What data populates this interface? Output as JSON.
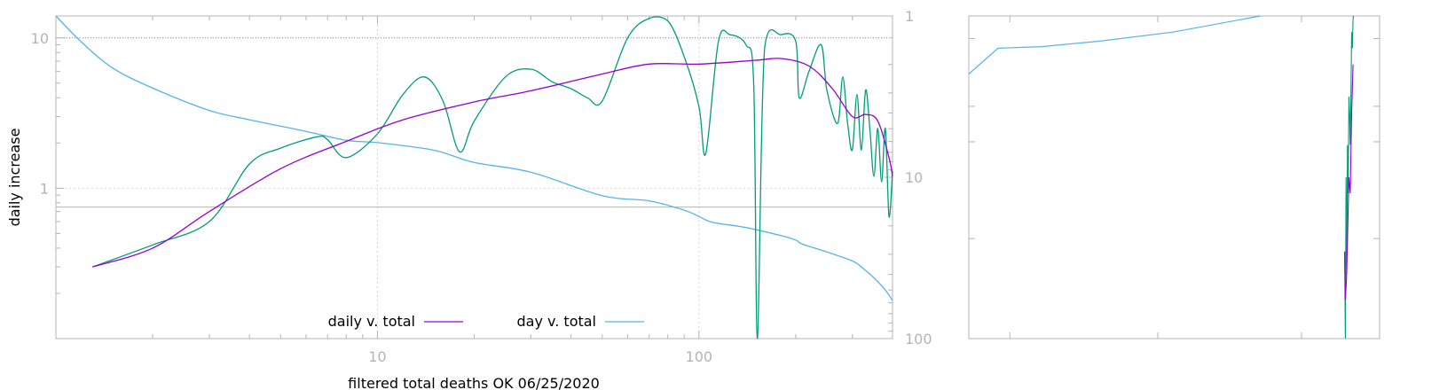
{
  "chart_data": [
    {
      "type": "line",
      "title": "",
      "xlabel": "filtered total deaths OK 06/25/2020",
      "ylabel": "daily increase",
      "x_scale": "log",
      "y_scale": "log",
      "y2_scale": "log",
      "y2_reversed": true,
      "xlim": [
        1.0,
        400
      ],
      "ylim": [
        0.1,
        14
      ],
      "y2lim": [
        1,
        100
      ],
      "x_ticks": [
        10,
        100
      ],
      "y_ticks": [
        1,
        10
      ],
      "y2_ticks": [
        1,
        10,
        100
      ],
      "grid": true,
      "legend_position": "bottom-center",
      "reference_lines": [
        {
          "axis": "y",
          "value": 10,
          "style": "dotted"
        },
        {
          "axis": "y",
          "value": 0.75,
          "style": "solid"
        }
      ],
      "series": [
        {
          "name": "daily v. total",
          "color": "#9400d3",
          "axis": "y",
          "points": [
            [
              1.3,
              0.3
            ],
            [
              2,
              0.4
            ],
            [
              3,
              0.7
            ],
            [
              5,
              1.35
            ],
            [
              8,
              2.05
            ],
            [
              12,
              2.85
            ],
            [
              20,
              3.75
            ],
            [
              30,
              4.45
            ],
            [
              50,
              5.75
            ],
            [
              70,
              6.7
            ],
            [
              100,
              6.7
            ],
            [
              150,
              7.1
            ],
            [
              180,
              7.3
            ],
            [
              220,
              6.5
            ],
            [
              260,
              4.6
            ],
            [
              300,
              3.0
            ],
            [
              330,
              3.1
            ],
            [
              360,
              2.8
            ],
            [
              390,
              1.6
            ],
            [
              400,
              1.2
            ]
          ]
        },
        {
          "name": "",
          "color": "#009e73",
          "axis": "y",
          "points": [
            [
              1.3,
              0.3
            ],
            [
              2,
              0.42
            ],
            [
              3,
              0.6
            ],
            [
              4,
              1.45
            ],
            [
              5,
              1.85
            ],
            [
              6.5,
              2.2
            ],
            [
              7,
              2.1
            ],
            [
              8,
              1.6
            ],
            [
              10,
              2.3
            ],
            [
              12,
              4.2
            ],
            [
              14,
              5.5
            ],
            [
              16,
              3.8
            ],
            [
              18,
              1.75
            ],
            [
              20,
              2.8
            ],
            [
              25,
              5.5
            ],
            [
              30,
              6.2
            ],
            [
              35,
              5.1
            ],
            [
              40,
              4.6
            ],
            [
              45,
              4.0
            ],
            [
              50,
              3.8
            ],
            [
              60,
              10.0
            ],
            [
              70,
              13.5
            ],
            [
              80,
              13.0
            ],
            [
              90,
              7.5
            ],
            [
              100,
              3.5
            ],
            [
              105,
              1.7
            ],
            [
              115,
              9.5
            ],
            [
              125,
              10.5
            ],
            [
              140,
              9.0
            ],
            [
              148,
              5.0
            ],
            [
              152,
              0.05
            ],
            [
              160,
              8.5
            ],
            [
              180,
              10.5
            ],
            [
              200,
              9.5
            ],
            [
              205,
              4.0
            ],
            [
              220,
              6.0
            ],
            [
              240,
              9.0
            ],
            [
              250,
              4.5
            ],
            [
              270,
              2.7
            ],
            [
              280,
              5.5
            ],
            [
              290,
              2.7
            ],
            [
              300,
              1.8
            ],
            [
              310,
              4.2
            ],
            [
              320,
              1.8
            ],
            [
              330,
              4.5
            ],
            [
              340,
              2.5
            ],
            [
              350,
              1.2
            ],
            [
              360,
              2.5
            ],
            [
              370,
              1.1
            ],
            [
              380,
              2.5
            ],
            [
              390,
              0.65
            ],
            [
              400,
              1.3
            ]
          ]
        },
        {
          "name": "day v. total",
          "color": "#56b4e9",
          "axis": "y2",
          "points": [
            [
              1.0,
              1.0
            ],
            [
              1.2,
              1.45
            ],
            [
              1.5,
              2.1
            ],
            [
              2,
              2.8
            ],
            [
              3,
              3.85
            ],
            [
              4,
              4.4
            ],
            [
              6,
              5.2
            ],
            [
              8,
              5.9
            ],
            [
              10,
              6.1
            ],
            [
              15,
              6.8
            ],
            [
              20,
              8.1
            ],
            [
              30,
              9.3
            ],
            [
              50,
              13.0
            ],
            [
              70,
              14.0
            ],
            [
              90,
              16.0
            ],
            [
              100,
              17.5
            ],
            [
              110,
              19.0
            ],
            [
              140,
              20.5
            ],
            [
              180,
              23.0
            ],
            [
              200,
              24.5
            ],
            [
              210,
              26.0
            ],
            [
              250,
              29.0
            ],
            [
              300,
              33.0
            ],
            [
              320,
              36.0
            ],
            [
              350,
              42.0
            ],
            [
              380,
              50.0
            ],
            [
              400,
              58.0
            ]
          ]
        }
      ]
    },
    {
      "type": "line",
      "title": "",
      "x_scale": "log",
      "y_scale": "log",
      "series": [
        {
          "name": "",
          "color": "#56b4e9",
          "points": [
            [
              0.0,
              0.18
            ],
            [
              0.1,
              0.1
            ],
            [
              0.25,
              0.095
            ],
            [
              0.45,
              0.078
            ],
            [
              0.7,
              0.05
            ],
            [
              1.0,
              0.0
            ]
          ]
        },
        {
          "name": "",
          "color": "#009e73",
          "points": [
            [
              0.0,
              0.27
            ],
            [
              0.02,
              0.0
            ],
            [
              0.04,
              0.5
            ],
            [
              0.06,
              0.2
            ],
            [
              0.08,
              0.6
            ],
            [
              0.1,
              0.45
            ],
            [
              0.12,
              0.75
            ],
            [
              0.14,
              0.7
            ],
            [
              0.16,
              0.6
            ],
            [
              0.18,
              0.75
            ],
            [
              0.2,
              0.95
            ],
            [
              0.22,
              0.9
            ],
            [
              0.24,
              0.99
            ],
            [
              0.25,
              1.0
            ]
          ]
        },
        {
          "name": "",
          "color": "#9400d3",
          "points": [
            [
              0.0,
              0.27
            ],
            [
              0.02,
              0.12
            ],
            [
              0.05,
              0.18
            ],
            [
              0.08,
              0.3
            ],
            [
              0.12,
              0.5
            ],
            [
              0.16,
              0.45
            ],
            [
              0.2,
              0.7
            ],
            [
              0.24,
              0.85
            ]
          ]
        }
      ]
    }
  ]
}
